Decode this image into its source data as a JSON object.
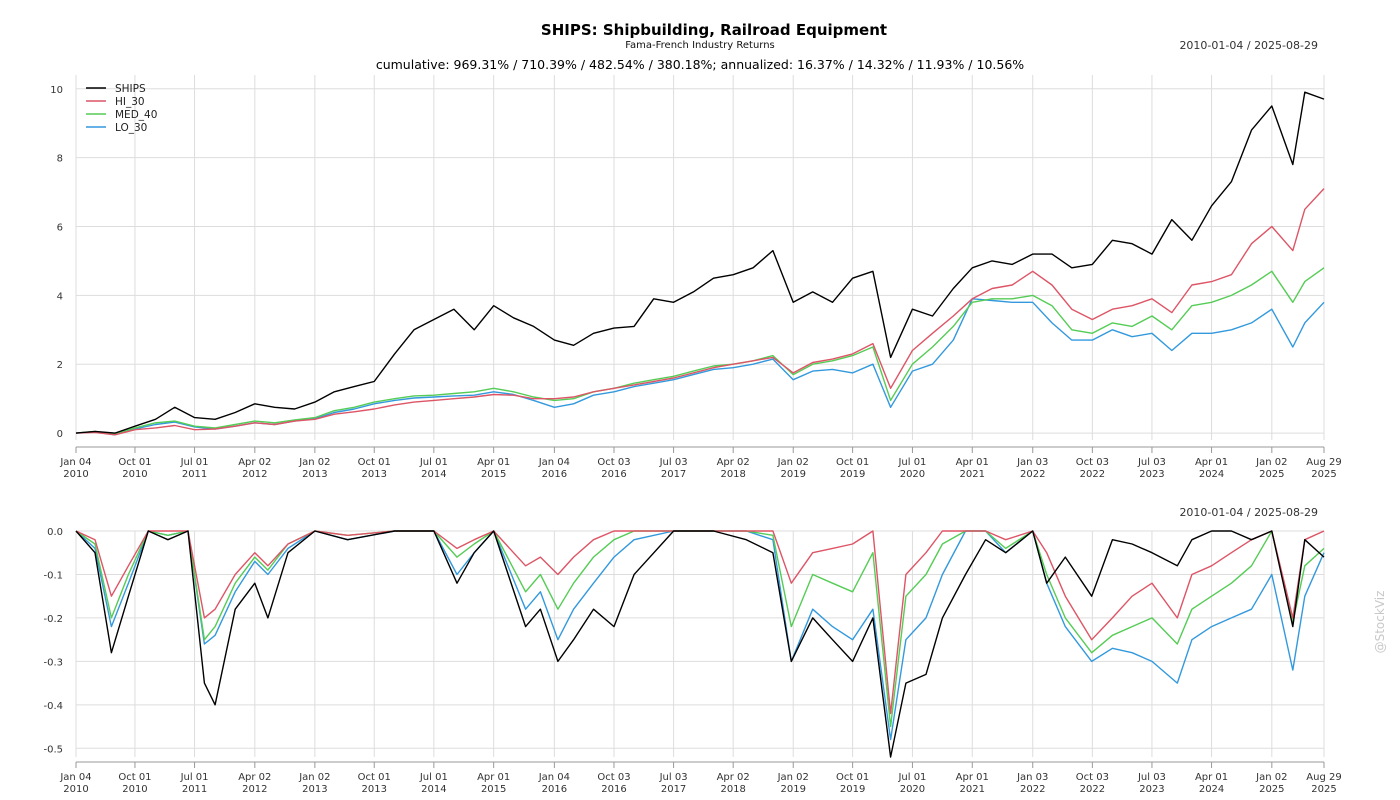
{
  "header": {
    "title": "SHIPS: Shipbuilding, Railroad Equipment",
    "subtitle": "Fama-French Industry Returns",
    "stats": "cumulative: 969.31% / 710.39% / 482.54% / 380.18%; annualized: 16.37% / 14.32% / 11.93% / 10.56%",
    "date_range_top": "2010-01-04 / 2025-08-29",
    "date_range_bottom": "2010-01-04 / 2025-08-29"
  },
  "watermark": "@StockViz",
  "chart_data": [
    {
      "type": "line",
      "name": "cumulative-returns",
      "ylim": [
        -0.2,
        10.4
      ],
      "yticks": [
        0,
        2,
        4,
        6,
        8,
        10
      ],
      "xticks": [
        "2010-01-04",
        "2010-10-01",
        "2011-07-01",
        "2012-04-02",
        "2013-01-02",
        "2013-10-01",
        "2014-07-01",
        "2015-04-01",
        "2016-01-04",
        "2016-10-03",
        "2017-07-03",
        "2018-04-02",
        "2019-01-02",
        "2019-10-01",
        "2020-07-01",
        "2021-04-01",
        "2022-01-03",
        "2022-10-03",
        "2023-07-03",
        "2024-04-01",
        "2025-01-02",
        "2025-08-29"
      ],
      "xtick_labels": [
        [
          "Jan 04",
          "2010"
        ],
        [
          "Oct 01",
          "2010"
        ],
        [
          "Jul 01",
          "2011"
        ],
        [
          "Apr 02",
          "2012"
        ],
        [
          "Jan 02",
          "2013"
        ],
        [
          "Oct 01",
          "2013"
        ],
        [
          "Jul 01",
          "2014"
        ],
        [
          "Apr 01",
          "2015"
        ],
        [
          "Jan 04",
          "2016"
        ],
        [
          "Oct 03",
          "2016"
        ],
        [
          "Jul 03",
          "2017"
        ],
        [
          "Apr 02",
          "2018"
        ],
        [
          "Jan 02",
          "2019"
        ],
        [
          "Oct 01",
          "2019"
        ],
        [
          "Jul 01",
          "2020"
        ],
        [
          "Apr 01",
          "2021"
        ],
        [
          "Jan 03",
          "2022"
        ],
        [
          "Oct 03",
          "2022"
        ],
        [
          "Jul 03",
          "2023"
        ],
        [
          "Apr 01",
          "2024"
        ],
        [
          "Jan 02",
          "2025"
        ],
        [
          "Aug 29",
          "2025"
        ]
      ],
      "legend_position": "top-left",
      "x": [
        "2010-01-04",
        "2010-04-01",
        "2010-07-01",
        "2010-10-01",
        "2011-01-03",
        "2011-04-01",
        "2011-07-01",
        "2011-10-03",
        "2012-01-03",
        "2012-04-02",
        "2012-07-02",
        "2012-10-01",
        "2013-01-02",
        "2013-04-01",
        "2013-07-01",
        "2013-10-01",
        "2014-01-02",
        "2014-04-01",
        "2014-07-01",
        "2014-10-01",
        "2015-01-02",
        "2015-04-01",
        "2015-07-01",
        "2015-10-01",
        "2016-01-04",
        "2016-04-01",
        "2016-07-01",
        "2016-10-03",
        "2017-01-03",
        "2017-04-03",
        "2017-07-03",
        "2017-10-02",
        "2018-01-02",
        "2018-04-02",
        "2018-07-02",
        "2018-10-01",
        "2019-01-02",
        "2019-04-01",
        "2019-07-01",
        "2019-10-01",
        "2020-01-02",
        "2020-03-23",
        "2020-07-01",
        "2020-10-01",
        "2021-01-04",
        "2021-04-01",
        "2021-07-01",
        "2021-10-01",
        "2022-01-03",
        "2022-04-01",
        "2022-07-01",
        "2022-10-03",
        "2023-01-03",
        "2023-04-03",
        "2023-07-03",
        "2023-10-02",
        "2024-01-02",
        "2024-04-01",
        "2024-07-01",
        "2024-10-01",
        "2025-01-02",
        "2025-04-08",
        "2025-06-02",
        "2025-08-29"
      ],
      "series": [
        {
          "name": "SHIPS",
          "color": "#000000",
          "values": [
            0.0,
            0.05,
            0.0,
            0.2,
            0.4,
            0.75,
            0.45,
            0.4,
            0.6,
            0.85,
            0.75,
            0.7,
            0.9,
            1.2,
            1.35,
            1.5,
            2.3,
            3.0,
            3.3,
            3.6,
            3.0,
            3.7,
            3.35,
            3.1,
            2.7,
            2.55,
            2.9,
            3.05,
            3.1,
            3.9,
            3.8,
            4.1,
            4.5,
            4.6,
            4.8,
            5.3,
            3.8,
            4.1,
            3.8,
            4.5,
            4.7,
            2.2,
            3.6,
            3.4,
            4.2,
            4.8,
            5.0,
            4.9,
            5.2,
            5.2,
            4.8,
            4.9,
            5.6,
            5.5,
            5.2,
            6.2,
            5.6,
            6.6,
            7.3,
            8.8,
            9.5,
            7.8,
            9.9,
            9.7
          ]
        },
        {
          "name": "HI_30",
          "color": "#dd5566",
          "values": [
            0.0,
            0.02,
            -0.05,
            0.1,
            0.15,
            0.22,
            0.1,
            0.12,
            0.2,
            0.3,
            0.25,
            0.35,
            0.4,
            0.55,
            0.62,
            0.7,
            0.82,
            0.9,
            0.95,
            1.0,
            1.05,
            1.12,
            1.1,
            1.0,
            1.0,
            1.05,
            1.2,
            1.3,
            1.4,
            1.5,
            1.6,
            1.75,
            1.9,
            2.0,
            2.1,
            2.2,
            1.75,
            2.05,
            2.15,
            2.3,
            2.6,
            1.3,
            2.4,
            2.9,
            3.4,
            3.9,
            4.2,
            4.3,
            4.7,
            4.3,
            3.6,
            3.3,
            3.6,
            3.7,
            3.9,
            3.5,
            4.3,
            4.4,
            4.6,
            5.5,
            6.0,
            5.3,
            6.5,
            7.1
          ]
        },
        {
          "name": "MED_40",
          "color": "#55cc55",
          "values": [
            0.0,
            0.05,
            -0.02,
            0.15,
            0.3,
            0.35,
            0.2,
            0.15,
            0.25,
            0.35,
            0.3,
            0.38,
            0.45,
            0.65,
            0.75,
            0.9,
            1.0,
            1.08,
            1.1,
            1.15,
            1.2,
            1.3,
            1.2,
            1.05,
            0.95,
            1.0,
            1.2,
            1.3,
            1.45,
            1.55,
            1.65,
            1.8,
            1.95,
            2.0,
            2.1,
            2.25,
            1.7,
            2.0,
            2.1,
            2.25,
            2.5,
            0.95,
            2.0,
            2.5,
            3.1,
            3.8,
            3.9,
            3.9,
            4.0,
            3.7,
            3.0,
            2.9,
            3.2,
            3.1,
            3.4,
            3.0,
            3.7,
            3.8,
            4.0,
            4.3,
            4.7,
            3.8,
            4.4,
            4.8
          ]
        },
        {
          "name": "LO_30",
          "color": "#3399dd",
          "values": [
            0.0,
            0.03,
            -0.05,
            0.12,
            0.25,
            0.32,
            0.18,
            0.12,
            0.2,
            0.3,
            0.25,
            0.35,
            0.42,
            0.6,
            0.7,
            0.85,
            0.95,
            1.02,
            1.05,
            1.08,
            1.1,
            1.2,
            1.12,
            0.95,
            0.75,
            0.85,
            1.1,
            1.2,
            1.35,
            1.45,
            1.55,
            1.7,
            1.85,
            1.9,
            2.0,
            2.15,
            1.55,
            1.8,
            1.85,
            1.75,
            2.0,
            0.75,
            1.8,
            2.0,
            2.7,
            3.9,
            3.85,
            3.8,
            3.8,
            3.2,
            2.7,
            2.7,
            3.0,
            2.8,
            2.9,
            2.4,
            2.9,
            2.9,
            3.0,
            3.2,
            3.6,
            2.5,
            3.2,
            3.8
          ]
        }
      ]
    },
    {
      "type": "line",
      "name": "drawdowns",
      "ylim": [
        -0.52,
        0.0
      ],
      "yticks": [
        0.0,
        -0.1,
        -0.2,
        -0.3,
        -0.4,
        -0.5
      ],
      "ytick_labels": [
        "0.0",
        "-0.1",
        "-0.2",
        "-0.3",
        "-0.4",
        "-0.5"
      ],
      "x": [
        "2010-01-04",
        "2010-04-01",
        "2010-06-15",
        "2010-09-01",
        "2010-12-01",
        "2011-03-01",
        "2011-06-01",
        "2011-08-15",
        "2011-10-03",
        "2012-01-03",
        "2012-04-02",
        "2012-06-01",
        "2012-09-01",
        "2013-01-02",
        "2013-06-01",
        "2014-01-02",
        "2014-07-01",
        "2014-10-15",
        "2015-01-02",
        "2015-04-01",
        "2015-08-25",
        "2015-11-01",
        "2016-01-20",
        "2016-04-01",
        "2016-07-01",
        "2016-10-03",
        "2017-01-03",
        "2017-07-03",
        "2018-01-02",
        "2018-06-01",
        "2018-10-01",
        "2018-12-24",
        "2019-04-01",
        "2019-07-01",
        "2019-10-01",
        "2020-01-02",
        "2020-03-23",
        "2020-06-01",
        "2020-09-01",
        "2020-11-15",
        "2021-03-01",
        "2021-06-01",
        "2021-09-01",
        "2022-01-03",
        "2022-03-08",
        "2022-06-01",
        "2022-09-30",
        "2023-01-03",
        "2023-04-03",
        "2023-07-03",
        "2023-10-27",
        "2024-01-02",
        "2024-04-01",
        "2024-07-01",
        "2024-10-01",
        "2025-01-02",
        "2025-04-08",
        "2025-06-02",
        "2025-08-29"
      ],
      "series": [
        {
          "name": "SHIPS",
          "color": "#000000",
          "values": [
            0.0,
            -0.05,
            -0.28,
            -0.15,
            0.0,
            -0.02,
            0.0,
            -0.35,
            -0.4,
            -0.18,
            -0.12,
            -0.2,
            -0.05,
            0.0,
            -0.02,
            0.0,
            0.0,
            -0.12,
            -0.05,
            0.0,
            -0.22,
            -0.18,
            -0.3,
            -0.25,
            -0.18,
            -0.22,
            -0.1,
            0.0,
            0.0,
            -0.02,
            -0.05,
            -0.3,
            -0.2,
            -0.25,
            -0.3,
            -0.2,
            -0.52,
            -0.35,
            -0.33,
            -0.2,
            -0.1,
            -0.02,
            -0.05,
            0.0,
            -0.12,
            -0.06,
            -0.15,
            -0.02,
            -0.03,
            -0.05,
            -0.08,
            -0.02,
            0.0,
            0.0,
            -0.02,
            0.0,
            -0.22,
            -0.02,
            -0.06
          ]
        },
        {
          "name": "HI_30",
          "color": "#dd5566",
          "values": [
            0.0,
            -0.02,
            -0.15,
            -0.08,
            0.0,
            0.0,
            0.0,
            -0.2,
            -0.18,
            -0.1,
            -0.05,
            -0.08,
            -0.03,
            0.0,
            -0.01,
            0.0,
            0.0,
            -0.04,
            -0.02,
            0.0,
            -0.08,
            -0.06,
            -0.1,
            -0.06,
            -0.02,
            0.0,
            0.0,
            0.0,
            0.0,
            0.0,
            0.0,
            -0.12,
            -0.05,
            -0.04,
            -0.03,
            0.0,
            -0.42,
            -0.1,
            -0.05,
            0.0,
            0.0,
            0.0,
            -0.02,
            0.0,
            -0.05,
            -0.15,
            -0.25,
            -0.2,
            -0.15,
            -0.12,
            -0.2,
            -0.1,
            -0.08,
            -0.05,
            -0.02,
            0.0,
            -0.2,
            -0.02,
            0.0
          ]
        },
        {
          "name": "MED_40",
          "color": "#55cc55",
          "values": [
            0.0,
            -0.03,
            -0.2,
            -0.1,
            0.0,
            -0.01,
            0.0,
            -0.25,
            -0.22,
            -0.12,
            -0.06,
            -0.09,
            -0.03,
            0.0,
            -0.01,
            0.0,
            0.0,
            -0.06,
            -0.03,
            0.0,
            -0.14,
            -0.1,
            -0.18,
            -0.12,
            -0.06,
            -0.02,
            0.0,
            0.0,
            0.0,
            0.0,
            -0.01,
            -0.22,
            -0.1,
            -0.12,
            -0.14,
            -0.05,
            -0.45,
            -0.15,
            -0.1,
            -0.03,
            0.0,
            0.0,
            -0.04,
            0.0,
            -0.1,
            -0.2,
            -0.28,
            -0.24,
            -0.22,
            -0.2,
            -0.26,
            -0.18,
            -0.15,
            -0.12,
            -0.08,
            0.0,
            -0.21,
            -0.08,
            -0.04
          ]
        },
        {
          "name": "LO_30",
          "color": "#3399dd",
          "values": [
            0.0,
            -0.04,
            -0.22,
            -0.12,
            0.0,
            -0.01,
            0.0,
            -0.26,
            -0.24,
            -0.14,
            -0.07,
            -0.1,
            -0.04,
            0.0,
            -0.02,
            0.0,
            0.0,
            -0.1,
            -0.05,
            0.0,
            -0.18,
            -0.14,
            -0.25,
            -0.18,
            -0.12,
            -0.06,
            -0.02,
            0.0,
            0.0,
            0.0,
            -0.02,
            -0.3,
            -0.18,
            -0.22,
            -0.25,
            -0.18,
            -0.48,
            -0.25,
            -0.2,
            -0.1,
            0.0,
            0.0,
            -0.05,
            0.0,
            -0.12,
            -0.22,
            -0.3,
            -0.27,
            -0.28,
            -0.3,
            -0.35,
            -0.25,
            -0.22,
            -0.2,
            -0.18,
            -0.1,
            -0.32,
            -0.15,
            -0.05
          ]
        }
      ]
    }
  ]
}
